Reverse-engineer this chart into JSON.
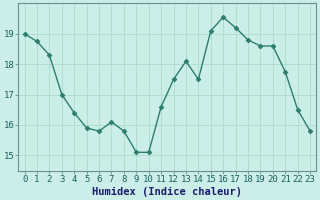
{
  "x": [
    0,
    1,
    2,
    3,
    4,
    5,
    6,
    7,
    8,
    9,
    10,
    11,
    12,
    13,
    14,
    15,
    16,
    17,
    18,
    19,
    20,
    21,
    22,
    23
  ],
  "y": [
    19.0,
    18.75,
    18.3,
    17.0,
    16.4,
    15.9,
    15.8,
    16.1,
    15.8,
    15.1,
    15.1,
    16.6,
    17.5,
    18.1,
    17.5,
    19.1,
    19.55,
    19.2,
    18.8,
    18.6,
    18.6,
    17.75,
    16.5,
    15.8
  ],
  "line_color": "#2d7d6e",
  "marker": "D",
  "marker_size": 2.5,
  "bg_color": "#cceee8",
  "grid_color": "#aaddcc",
  "xlabel": "Humidex (Indice chaleur)",
  "xlim": [
    -0.5,
    23.5
  ],
  "ylim": [
    14.5,
    20.0
  ],
  "yticks": [
    15,
    16,
    17,
    18,
    19
  ],
  "xlabel_fontsize": 7.5,
  "tick_fontsize": 6.5,
  "line_width": 1.0,
  "xlabel_color": "#1a1a6a",
  "tick_color": "#1a6060",
  "spine_color": "#6a9090"
}
